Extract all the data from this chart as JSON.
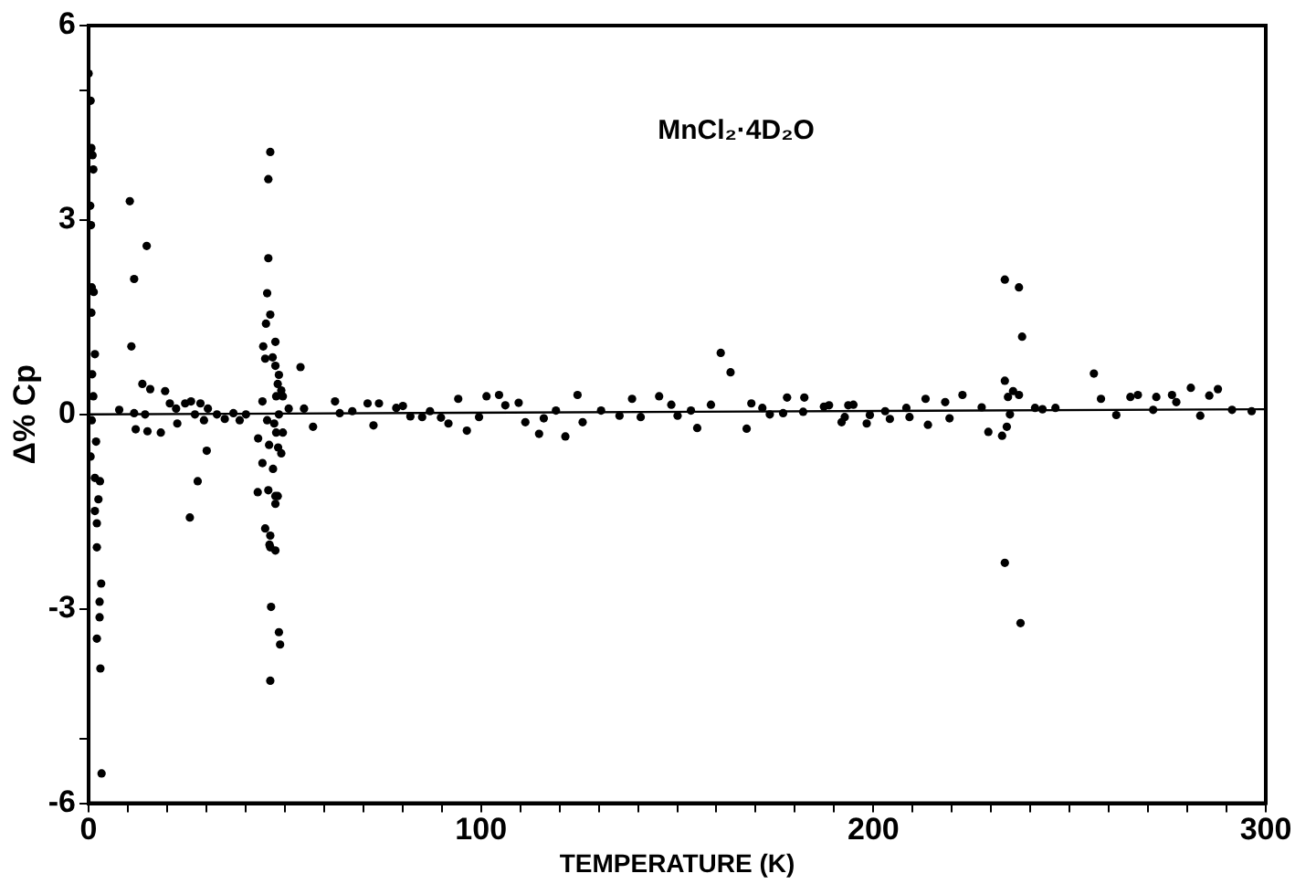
{
  "chart_data": {
    "type": "scatter",
    "xlabel": "TEMPERATURE (K)",
    "ylabel": "Δ% Cp",
    "annotations": [
      "MnCl₂·4D₂O"
    ],
    "xlim": [
      0,
      300
    ],
    "ylim": [
      -6,
      6
    ],
    "xticks": [
      0,
      {
        "value": 10,
        "label": null
      },
      {
        "value": 20,
        "label": null
      },
      {
        "value": 30,
        "label": null
      },
      {
        "value": 40,
        "label": null
      },
      {
        "value": 50,
        "label": null
      },
      {
        "value": 60,
        "label": null
      },
      {
        "value": 70,
        "label": null
      },
      {
        "value": 80,
        "label": null
      },
      {
        "value": 90,
        "label": null
      },
      100,
      {
        "value": 110,
        "label": null
      },
      {
        "value": 120,
        "label": null
      },
      {
        "value": 130,
        "label": null
      },
      {
        "value": 140,
        "label": null
      },
      {
        "value": 150,
        "label": null
      },
      {
        "value": 160,
        "label": null
      },
      {
        "value": 170,
        "label": null
      },
      {
        "value": 180,
        "label": null
      },
      {
        "value": 190,
        "label": null
      },
      200,
      {
        "value": 210,
        "label": null
      },
      {
        "value": 220,
        "label": null
      },
      {
        "value": 230,
        "label": null
      },
      {
        "value": 240,
        "label": null
      },
      {
        "value": 250,
        "label": null
      },
      {
        "value": 260,
        "label": null
      },
      {
        "value": 270,
        "label": null
      },
      {
        "value": 280,
        "label": null
      },
      {
        "value": 290,
        "label": null
      },
      300
    ],
    "yticks": [
      -6,
      {
        "value": -5,
        "label": null
      },
      -3,
      0,
      3,
      {
        "value": 5,
        "label": null
      },
      6
    ],
    "marker": "circle",
    "grid": false,
    "legend": false,
    "series": [
      {
        "color": "#000000",
        "x": [
          0,
          0.5,
          0.7,
          1,
          1.2,
          0.4,
          0.6,
          0.8,
          1.3,
          0.7,
          1.6,
          0.9,
          1.2,
          0.8,
          1.9,
          0.5,
          1.6,
          2.9,
          2.5,
          1.6,
          2.1,
          2.1,
          3.2,
          2.8,
          2.8,
          2.1,
          3,
          3.3,
          10.5,
          14.8,
          11.6,
          10.9,
          13.7,
          15.7,
          19.5,
          7.8,
          11.6,
          14.4,
          12,
          15,
          18.4,
          20.7,
          22.3,
          24.6,
          26.1,
          28.5,
          30.4,
          22.6,
          27.1,
          29.4,
          30.1,
          27.8,
          25.8,
          32.7,
          34.7,
          36.9,
          38.5,
          40.1,
          46.3,
          45.8,
          45.8,
          45.5,
          46.3,
          45.2,
          47.6,
          44.5,
          45,
          46.9,
          47.6,
          48.5,
          54,
          48.2,
          49.1,
          47.8,
          44.3,
          49.5,
          51,
          54.9,
          57.2,
          45.5,
          47.3,
          48.5,
          43.2,
          46,
          47.8,
          48.3,
          49.1,
          49.5,
          47,
          44.3,
          43.1,
          45.8,
          47.6,
          48.2,
          47.6,
          45,
          46.3,
          46.1,
          47.6,
          46.3,
          46.5,
          48.5,
          48.8,
          46.3,
          62.8,
          64,
          67.2,
          71.1,
          72.6,
          74,
          78.4,
          80.1,
          82,
          85,
          87,
          89.8,
          91.7,
          94.2,
          96.4,
          99.5,
          101.4,
          104.6,
          106.2,
          109.6,
          111.3,
          114.8,
          116,
          119.1,
          121.5,
          124.6,
          125.9,
          130.6,
          135.3,
          138.5,
          140.7,
          145.4,
          148.5,
          150.1,
          153.5,
          155.1,
          158.6,
          161.1,
          163.6,
          167.7,
          168.9,
          171.7,
          173.6,
          177,
          178,
          182.1,
          182.4,
          187.4,
          188.7,
          191.9,
          192.7,
          193.6,
          194.9,
          198.3,
          199.1,
          203,
          204.2,
          208.4,
          209.2,
          213.3,
          213.9,
          218.3,
          219.4,
          222.7,
          227.6,
          229.3,
          232.8,
          234,
          233.5,
          237.1,
          237.9,
          233.5,
          234.3,
          235.6,
          237.1,
          234.8,
          241.2,
          243.1,
          246.4,
          233.5,
          237.5,
          256.2,
          258,
          261.9,
          265.5,
          267.4,
          271.3,
          272.1,
          276.1,
          277.2,
          280.9,
          283.3,
          285.6,
          287.8,
          291.4,
          296.4
        ],
        "values": [
          5.26,
          4.84,
          4.11,
          4,
          3.78,
          3.22,
          2.92,
          1.96,
          1.89,
          1.57,
          0.93,
          0.62,
          0.28,
          -0.09,
          -0.42,
          -0.65,
          -0.98,
          -1.03,
          -1.31,
          -1.49,
          -1.68,
          -2.05,
          -2.61,
          -2.89,
          -3.13,
          -3.46,
          -3.92,
          -5.54,
          3.29,
          2.6,
          2.09,
          1.05,
          0.47,
          0.39,
          0.36,
          0.07,
          0.02,
          0,
          -0.23,
          -0.26,
          -0.28,
          0.17,
          0.09,
          0.17,
          0.2,
          0.17,
          0.09,
          -0.14,
          0,
          -0.09,
          -0.56,
          -1.03,
          -1.59,
          0,
          -0.07,
          0.02,
          -0.09,
          0,
          4.05,
          3.63,
          2.41,
          1.87,
          1.54,
          1.4,
          1.12,
          1.05,
          0.86,
          0.88,
          0.75,
          0.61,
          0.73,
          0.47,
          0.37,
          0.28,
          0.2,
          0.28,
          0.09,
          0.09,
          -0.19,
          -0.09,
          -0.14,
          0,
          -0.37,
          -0.47,
          -0.28,
          -0.51,
          -0.6,
          -0.28,
          -0.84,
          -0.75,
          -1.2,
          -1.17,
          -1.26,
          -1.26,
          -1.38,
          -1.76,
          -1.87,
          -2.01,
          -2.1,
          -2.05,
          -2.97,
          -3.36,
          -3.55,
          -4.11,
          0.2,
          0.02,
          0.05,
          0.17,
          -0.17,
          0.17,
          0.1,
          0.13,
          -0.03,
          -0.04,
          0.05,
          -0.05,
          -0.14,
          0.24,
          -0.25,
          -0.04,
          0.28,
          0.3,
          0.14,
          0.18,
          -0.12,
          -0.3,
          -0.06,
          0.06,
          -0.34,
          0.3,
          -0.12,
          0.06,
          -0.02,
          0.24,
          -0.04,
          0.28,
          0.15,
          -0.02,
          0.06,
          -0.21,
          0.15,
          0.95,
          0.65,
          -0.22,
          0.17,
          0.1,
          0,
          0.02,
          0.26,
          0.04,
          0.26,
          0.12,
          0.14,
          -0.12,
          -0.04,
          0.14,
          0.15,
          -0.14,
          -0.01,
          0.05,
          -0.07,
          0.1,
          -0.04,
          0.24,
          -0.16,
          0.19,
          -0.06,
          0.3,
          0.11,
          -0.27,
          -0.33,
          -0.19,
          2.08,
          1.96,
          1.2,
          0.52,
          0.27,
          0.36,
          0.3,
          0,
          0.1,
          0.08,
          0.1,
          -2.29,
          -3.22,
          0.63,
          0.24,
          -0.01,
          0.27,
          0.3,
          0.07,
          0.27,
          0.3,
          0.19,
          0.41,
          -0.02,
          0.29,
          0.39,
          0.07,
          0.05
        ]
      },
      {
        "type": "line",
        "color": "#000000",
        "x": [
          0,
          300
        ],
        "values": [
          0,
          0.08
        ],
        "marker": "none"
      }
    ]
  }
}
